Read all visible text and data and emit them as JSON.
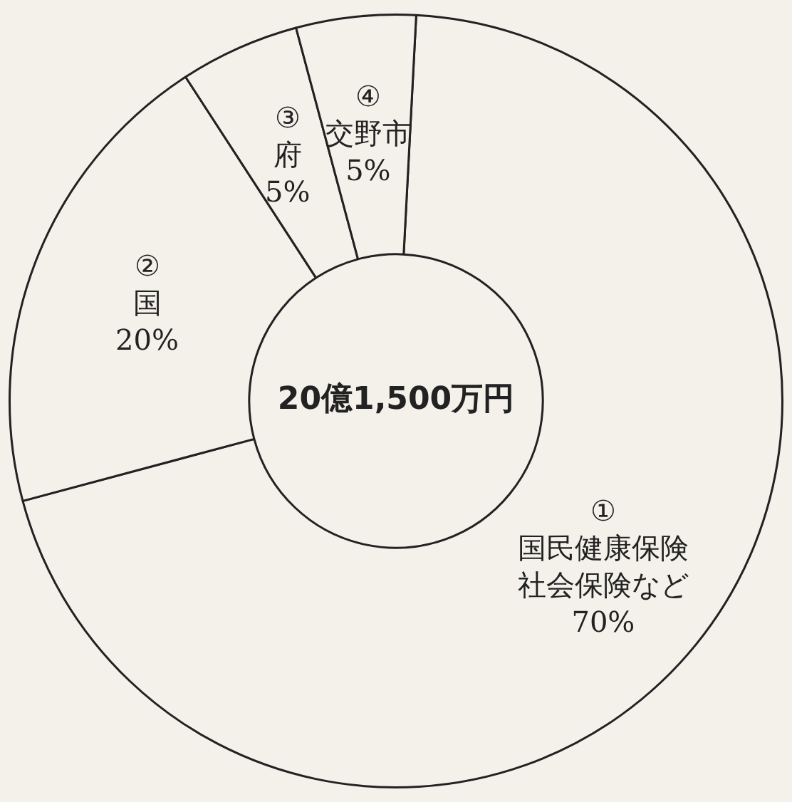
{
  "chart_data": {
    "type": "donut",
    "categories": [
      "① 国民健康保険社会保険など",
      "② 国",
      "③ 府",
      "④ 交野市"
    ],
    "values": [
      70,
      20,
      5,
      5
    ],
    "value_labels": [
      "70%",
      "20%",
      "5%",
      "5%"
    ],
    "colors": [
      "#f4f1ea",
      "#f4f1ea",
      "#f4f1ea",
      "#f4f1ea"
    ],
    "annotations": [
      "20億1,500万円"
    ],
    "legend": false
  }
}
